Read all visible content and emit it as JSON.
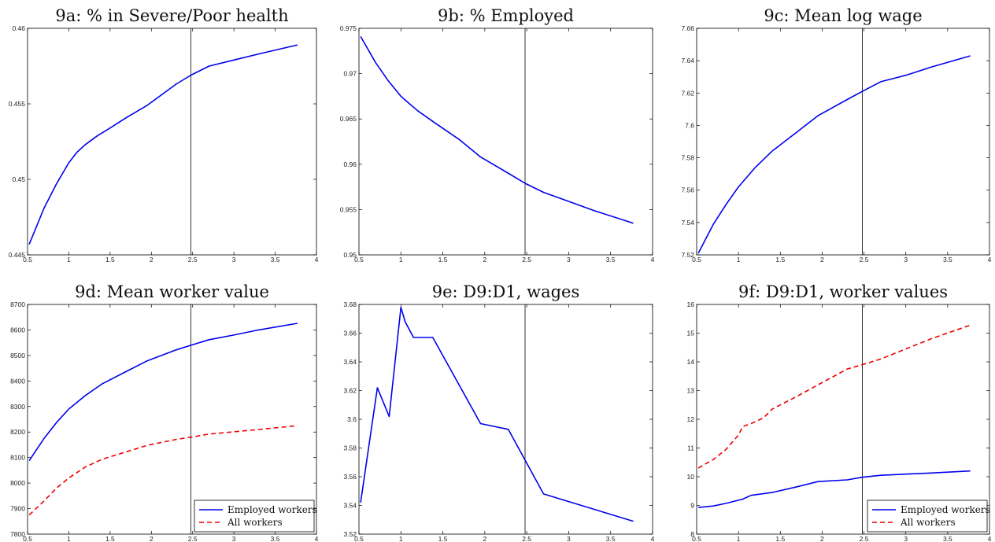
{
  "colors": {
    "blue": "#0000ee",
    "red": "#ee0000",
    "axis": "#000000",
    "vline": "#000000"
  },
  "chart_data": [
    {
      "type": "line",
      "title": "9a: % in Severe/Poor health",
      "xlim": [
        0.5,
        4
      ],
      "ylim": [
        0.445,
        0.46
      ],
      "xticks": [
        "0.5",
        "1",
        "1.5",
        "2",
        "2.5",
        "3",
        "3.5",
        "4"
      ],
      "yticks": [
        "0.445",
        "0.45",
        "0.455",
        "0.46"
      ],
      "vline_x": 2.48,
      "series": [
        {
          "color": "blue",
          "style": "solid",
          "x": [
            0.52,
            0.7,
            0.85,
            1.0,
            1.1,
            1.2,
            1.35,
            1.5,
            1.7,
            1.95,
            2.3,
            2.48,
            2.7,
            3.0,
            3.3,
            3.77
          ],
          "y": [
            0.4457,
            0.4481,
            0.4497,
            0.4511,
            0.4518,
            0.4523,
            0.4529,
            0.4534,
            0.4541,
            0.4549,
            0.4563,
            0.4569,
            0.4575,
            0.4579,
            0.4583,
            0.4589
          ]
        }
      ]
    },
    {
      "type": "line",
      "title": "9b: % Employed",
      "xlim": [
        0.5,
        4
      ],
      "ylim": [
        0.95,
        0.975
      ],
      "xticks": [
        "0.5",
        "1",
        "1.5",
        "2",
        "2.5",
        "3",
        "3.5",
        "4"
      ],
      "yticks": [
        "0.95",
        "0.955",
        "0.96",
        "0.965",
        "0.97",
        "0.975"
      ],
      "vline_x": 2.48,
      "series": [
        {
          "color": "blue",
          "style": "solid",
          "x": [
            0.52,
            0.7,
            0.85,
            1.0,
            1.1,
            1.2,
            1.4,
            1.7,
            1.95,
            2.3,
            2.48,
            2.7,
            3.0,
            3.3,
            3.77
          ],
          "y": [
            0.9741,
            0.9712,
            0.9692,
            0.9675,
            0.9667,
            0.9659,
            0.9646,
            0.9627,
            0.9608,
            0.9589,
            0.9579,
            0.9569,
            0.9559,
            0.9549,
            0.9535
          ]
        }
      ]
    },
    {
      "type": "line",
      "title": "9c: Mean log wage",
      "xlim": [
        0.5,
        4
      ],
      "ylim": [
        7.52,
        7.66
      ],
      "xticks": [
        "0.5",
        "1",
        "1.5",
        "2",
        "2.5",
        "3",
        "3.5",
        "4"
      ],
      "yticks": [
        "7.52",
        "7.54",
        "7.56",
        "7.58",
        "7.6",
        "7.62",
        "7.64",
        "7.66"
      ],
      "vline_x": 2.48,
      "series": [
        {
          "color": "blue",
          "style": "solid",
          "x": [
            0.52,
            0.7,
            0.85,
            1.0,
            1.2,
            1.4,
            1.7,
            1.95,
            2.3,
            2.48,
            2.7,
            3.0,
            3.3,
            3.77
          ],
          "y": [
            7.521,
            7.539,
            7.551,
            7.562,
            7.574,
            7.584,
            7.596,
            7.606,
            7.616,
            7.621,
            7.627,
            7.631,
            7.636,
            7.643
          ]
        }
      ]
    },
    {
      "type": "line",
      "title": "9d: Mean worker value",
      "xlim": [
        0.5,
        4
      ],
      "ylim": [
        7800,
        8700
      ],
      "xticks": [
        "0.5",
        "1",
        "1.5",
        "2",
        "2.5",
        "3",
        "3.5",
        "4"
      ],
      "yticks": [
        "7800",
        "7900",
        "8000",
        "8100",
        "8200",
        "8300",
        "8400",
        "8500",
        "8600",
        "8700"
      ],
      "vline_x": 2.48,
      "legend": "bottom-right",
      "series": [
        {
          "name": "Employed workers",
          "color": "blue",
          "style": "solid",
          "x": [
            0.52,
            0.7,
            0.85,
            1.0,
            1.2,
            1.4,
            1.7,
            1.95,
            2.3,
            2.48,
            2.7,
            3.0,
            3.3,
            3.77
          ],
          "y": [
            8088,
            8175,
            8237,
            8290,
            8343,
            8388,
            8438,
            8479,
            8522,
            8540,
            8562,
            8580,
            8600,
            8626
          ]
        },
        {
          "name": "All workers",
          "color": "red",
          "style": "dashed",
          "x": [
            0.52,
            0.7,
            0.85,
            1.0,
            1.2,
            1.4,
            1.7,
            1.95,
            2.3,
            2.48,
            2.7,
            3.0,
            3.3,
            3.77
          ],
          "y": [
            7875,
            7930,
            7980,
            8020,
            8063,
            8093,
            8123,
            8148,
            8171,
            8180,
            8192,
            8201,
            8210,
            8225
          ]
        }
      ]
    },
    {
      "type": "line",
      "title": "9e: D9:D1, wages",
      "xlim": [
        0.5,
        4
      ],
      "ylim": [
        3.52,
        3.68
      ],
      "xticks": [
        "0.5",
        "1",
        "1.5",
        "2",
        "2.5",
        "3",
        "3.5",
        "4"
      ],
      "yticks": [
        "3.52",
        "3.54",
        "3.56",
        "3.58",
        "3.6",
        "3.62",
        "3.64",
        "3.66",
        "3.68"
      ],
      "vline_x": 2.48,
      "series": [
        {
          "color": "blue",
          "style": "solid",
          "x": [
            0.52,
            0.72,
            0.86,
            1.0,
            1.05,
            1.15,
            1.38,
            1.95,
            2.28,
            2.7,
            3.77
          ],
          "y": [
            3.542,
            3.622,
            3.602,
            3.678,
            3.668,
            3.657,
            3.657,
            3.597,
            3.593,
            3.548,
            3.529
          ]
        }
      ]
    },
    {
      "type": "line",
      "title": "9f: D9:D1, worker values",
      "xlim": [
        0.5,
        4
      ],
      "ylim": [
        8,
        16
      ],
      "xticks": [
        "0.5",
        "1",
        "1.5",
        "2",
        "2.5",
        "3",
        "3.5",
        "4"
      ],
      "yticks": [
        "8",
        "9",
        "10",
        "11",
        "12",
        "13",
        "14",
        "15",
        "16"
      ],
      "vline_x": 2.48,
      "legend": "bottom-right",
      "series": [
        {
          "name": "Employed workers",
          "color": "blue",
          "style": "solid",
          "x": [
            0.52,
            0.7,
            0.85,
            1.0,
            1.05,
            1.15,
            1.4,
            1.7,
            1.95,
            2.3,
            2.48,
            2.7,
            3.0,
            3.3,
            3.77
          ],
          "y": [
            8.93,
            8.98,
            9.07,
            9.18,
            9.22,
            9.35,
            9.45,
            9.65,
            9.83,
            9.89,
            9.98,
            10.05,
            10.09,
            10.13,
            10.2
          ]
        },
        {
          "name": "All workers",
          "color": "red",
          "style": "dashed",
          "x": [
            0.52,
            0.7,
            0.85,
            1.0,
            1.05,
            1.15,
            1.3,
            1.4,
            1.7,
            1.95,
            2.3,
            2.48,
            2.7,
            3.0,
            3.3,
            3.77
          ],
          "y": [
            10.3,
            10.6,
            10.95,
            11.45,
            11.75,
            11.85,
            12.05,
            12.35,
            12.8,
            13.2,
            13.75,
            13.9,
            14.1,
            14.45,
            14.8,
            15.28
          ]
        }
      ]
    }
  ]
}
